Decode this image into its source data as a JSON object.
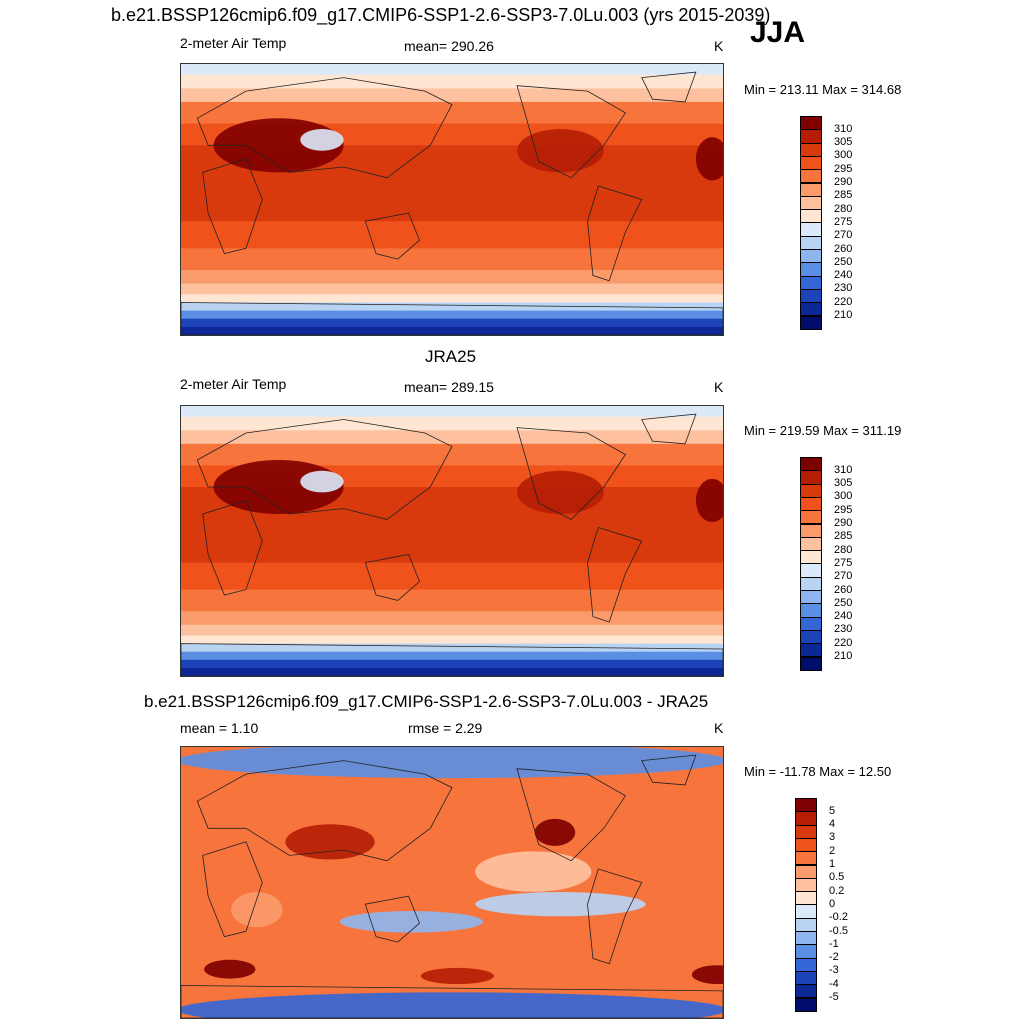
{
  "header": {
    "title": "b.e21.BSSP126cmip6.f09_g17.CMIP6-SSP1-2.6-SSP3-7.0Lu.003 (yrs 2015-2039)",
    "season": "JJA"
  },
  "panels": [
    {
      "title": "",
      "left_label": "2-meter Air Temp",
      "center_label": "mean= 290.26",
      "units": "K",
      "minmax": "Min = 213.11 Max = 314.68",
      "colorbar_labels": [
        "310",
        "305",
        "300",
        "295",
        "290",
        "285",
        "280",
        "275",
        "270",
        "260",
        "250",
        "240",
        "230",
        "220",
        "210"
      ],
      "colorbar_colors": [
        "#7f0000",
        "#b51e05",
        "#d83a0d",
        "#f0521c",
        "#f7743c",
        "#fb9a6a",
        "#fdc19f",
        "#fee6d3",
        "#dbe9f8",
        "#b9d3f3",
        "#8fb5ee",
        "#5b8fe3",
        "#3566d6",
        "#1c43b8",
        "#0d2796",
        "#000d6b"
      ],
      "field": "temperature"
    },
    {
      "title": "JRA25",
      "left_label": "2-meter Air Temp",
      "center_label": "mean= 289.15",
      "units": "K",
      "minmax": "Min = 219.59 Max = 311.19",
      "colorbar_labels": [
        "310",
        "305",
        "300",
        "295",
        "290",
        "285",
        "280",
        "275",
        "270",
        "260",
        "250",
        "240",
        "230",
        "220",
        "210"
      ],
      "colorbar_colors": [
        "#7f0000",
        "#b51e05",
        "#d83a0d",
        "#f0521c",
        "#f7743c",
        "#fb9a6a",
        "#fdc19f",
        "#fee6d3",
        "#dbe9f8",
        "#b9d3f3",
        "#8fb5ee",
        "#5b8fe3",
        "#3566d6",
        "#1c43b8",
        "#0d2796",
        "#000d6b"
      ],
      "field": "temperature"
    },
    {
      "title": "b.e21.BSSP126cmip6.f09_g17.CMIP6-SSP1-2.6-SSP3-7.0Lu.003 - JRA25",
      "left_label": "mean =   1.10",
      "center_label": "rmse =   2.29",
      "units": "K",
      "minmax": "Min = -11.78 Max =  12.50",
      "colorbar_labels": [
        "5",
        "4",
        "3",
        "2",
        "1",
        "0.5",
        "0.2",
        "0",
        "-0.2",
        "-0.5",
        "-1",
        "-2",
        "-3",
        "-4",
        "-5"
      ],
      "colorbar_colors": [
        "#7f0000",
        "#b51e05",
        "#d83a0d",
        "#f0521c",
        "#f7743c",
        "#fb9a6a",
        "#fdc19f",
        "#fee6d3",
        "#dbe9f8",
        "#b9d3f3",
        "#8fb5ee",
        "#5b8fe3",
        "#3566d6",
        "#1c43b8",
        "#0d2796",
        "#000d6b"
      ],
      "field": "difference"
    }
  ]
}
